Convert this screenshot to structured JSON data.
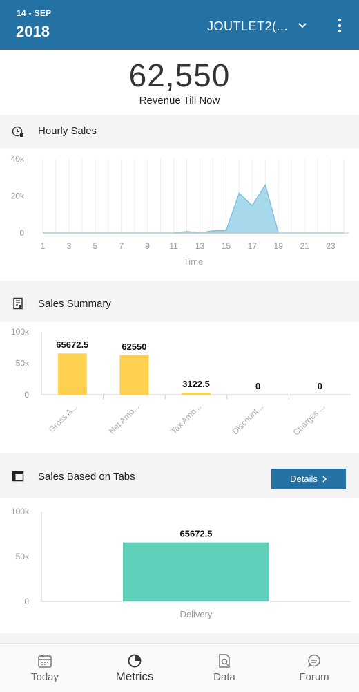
{
  "header": {
    "date_day": "14 - SEP",
    "date_year": "2018",
    "outlet": "JOUTLET2(...",
    "icons": {
      "dropdown": "chevron-down-icon",
      "menu": "more-vert-icon"
    }
  },
  "revenue": {
    "value": "62,550",
    "label": "Revenue Till Now"
  },
  "hourly": {
    "title": "Hourly Sales",
    "icon": "clock-icon",
    "chart_data": {
      "type": "area",
      "x": [
        1,
        2,
        3,
        4,
        5,
        6,
        7,
        8,
        9,
        10,
        11,
        12,
        13,
        14,
        15,
        16,
        17,
        18,
        19,
        20,
        21,
        22,
        23,
        24
      ],
      "values": [
        0,
        0,
        0,
        0,
        0,
        0,
        0,
        0,
        0,
        0,
        0,
        800,
        0,
        1200,
        1200,
        21500,
        14800,
        26000,
        0,
        0,
        0,
        0,
        0,
        0
      ],
      "x_tick_labels": [
        "1",
        "3",
        "5",
        "7",
        "9",
        "11",
        "13",
        "15",
        "17",
        "19",
        "21",
        "23"
      ],
      "y_tick_labels": [
        "40k",
        "20k",
        "0"
      ],
      "ylim": [
        0,
        40000
      ],
      "xlabel": "Time",
      "ylabel": "",
      "color": "#a8d8ec"
    }
  },
  "summary": {
    "title": "Sales Summary",
    "icon": "receipt-icon",
    "chart_data": {
      "type": "bar",
      "categories": [
        "Gross A...",
        "Net Amo...",
        "Tax Amo...",
        "Discount...",
        "Charges ..."
      ],
      "values": [
        65672.5,
        62550,
        3122.5,
        0,
        0
      ],
      "data_labels": [
        "65672.5",
        "62550",
        "3122.5",
        "0",
        "0"
      ],
      "y_tick_labels": [
        "100k",
        "50k",
        "0"
      ],
      "ylim": [
        0,
        100000
      ],
      "color": "#fdd04f"
    }
  },
  "tabs": {
    "title": "Sales Based on Tabs",
    "icon": "window-icon",
    "details_label": "Details",
    "details_icon": "chevron-right-icon",
    "chart_data": {
      "type": "bar",
      "categories": [
        "Delivery"
      ],
      "values": [
        65672.5
      ],
      "data_labels": [
        "65672.5"
      ],
      "y_tick_labels": [
        "100k",
        "50k",
        "0"
      ],
      "ylim": [
        0,
        100000
      ],
      "color": "#5ecfb9"
    }
  },
  "nav": {
    "items": [
      {
        "label": "Today",
        "icon": "calendar-icon",
        "active": false
      },
      {
        "label": "Metrics",
        "icon": "pie-chart-icon",
        "active": true
      },
      {
        "label": "Data",
        "icon": "document-search-icon",
        "active": false
      },
      {
        "label": "Forum",
        "icon": "chat-icon",
        "active": false
      }
    ]
  }
}
